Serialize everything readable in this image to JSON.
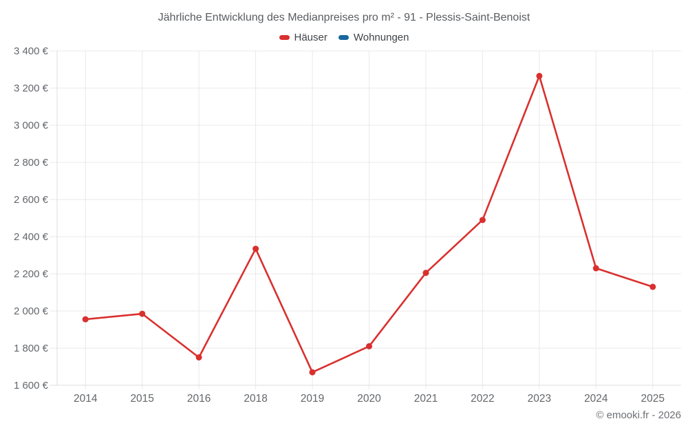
{
  "chart_data": {
    "type": "line",
    "title": "Jährliche Entwicklung des Medianpreises pro m² - 91 - Plessis-Saint-Benoist",
    "categories": [
      "2014",
      "2015",
      "2016",
      "2018",
      "2019",
      "2020",
      "2021",
      "2022",
      "2023",
      "2024",
      "2025"
    ],
    "series": [
      {
        "name": "Häuser",
        "color": "#d9302e",
        "values": [
          1955,
          1985,
          1750,
          2335,
          1670,
          1810,
          2205,
          2490,
          3265,
          2230,
          2130
        ]
      },
      {
        "name": "Wohnungen",
        "color": "#17689e",
        "values": []
      }
    ],
    "xlabel": "",
    "ylabel": "",
    "ylim": [
      1600,
      3400
    ],
    "y_ticks": [
      {
        "value": 1600,
        "label": "1 600 €"
      },
      {
        "value": 1800,
        "label": "1 800 €"
      },
      {
        "value": 2000,
        "label": "2 000 €"
      },
      {
        "value": 2200,
        "label": "2 200 €"
      },
      {
        "value": 2400,
        "label": "2 400 €"
      },
      {
        "value": 2600,
        "label": "2 600 €"
      },
      {
        "value": 2800,
        "label": "2 800 €"
      },
      {
        "value": 3000,
        "label": "3 000 €"
      },
      {
        "value": 3200,
        "label": "3 200 €"
      },
      {
        "value": 3400,
        "label": "3 400 €"
      }
    ],
    "grid": true,
    "legend_position": "top",
    "point_style": "filled-circle",
    "currency": "EUR"
  },
  "footer": {
    "copyright": "© emooki.fr - 2026"
  },
  "colors": {
    "background": "#ffffff",
    "grid": "#e9e9e9",
    "axis": "#dcdcdc",
    "tick_label": "#63666a",
    "title": "#595c60",
    "legend_label": "#3f4347",
    "footer": "#6d7074"
  }
}
